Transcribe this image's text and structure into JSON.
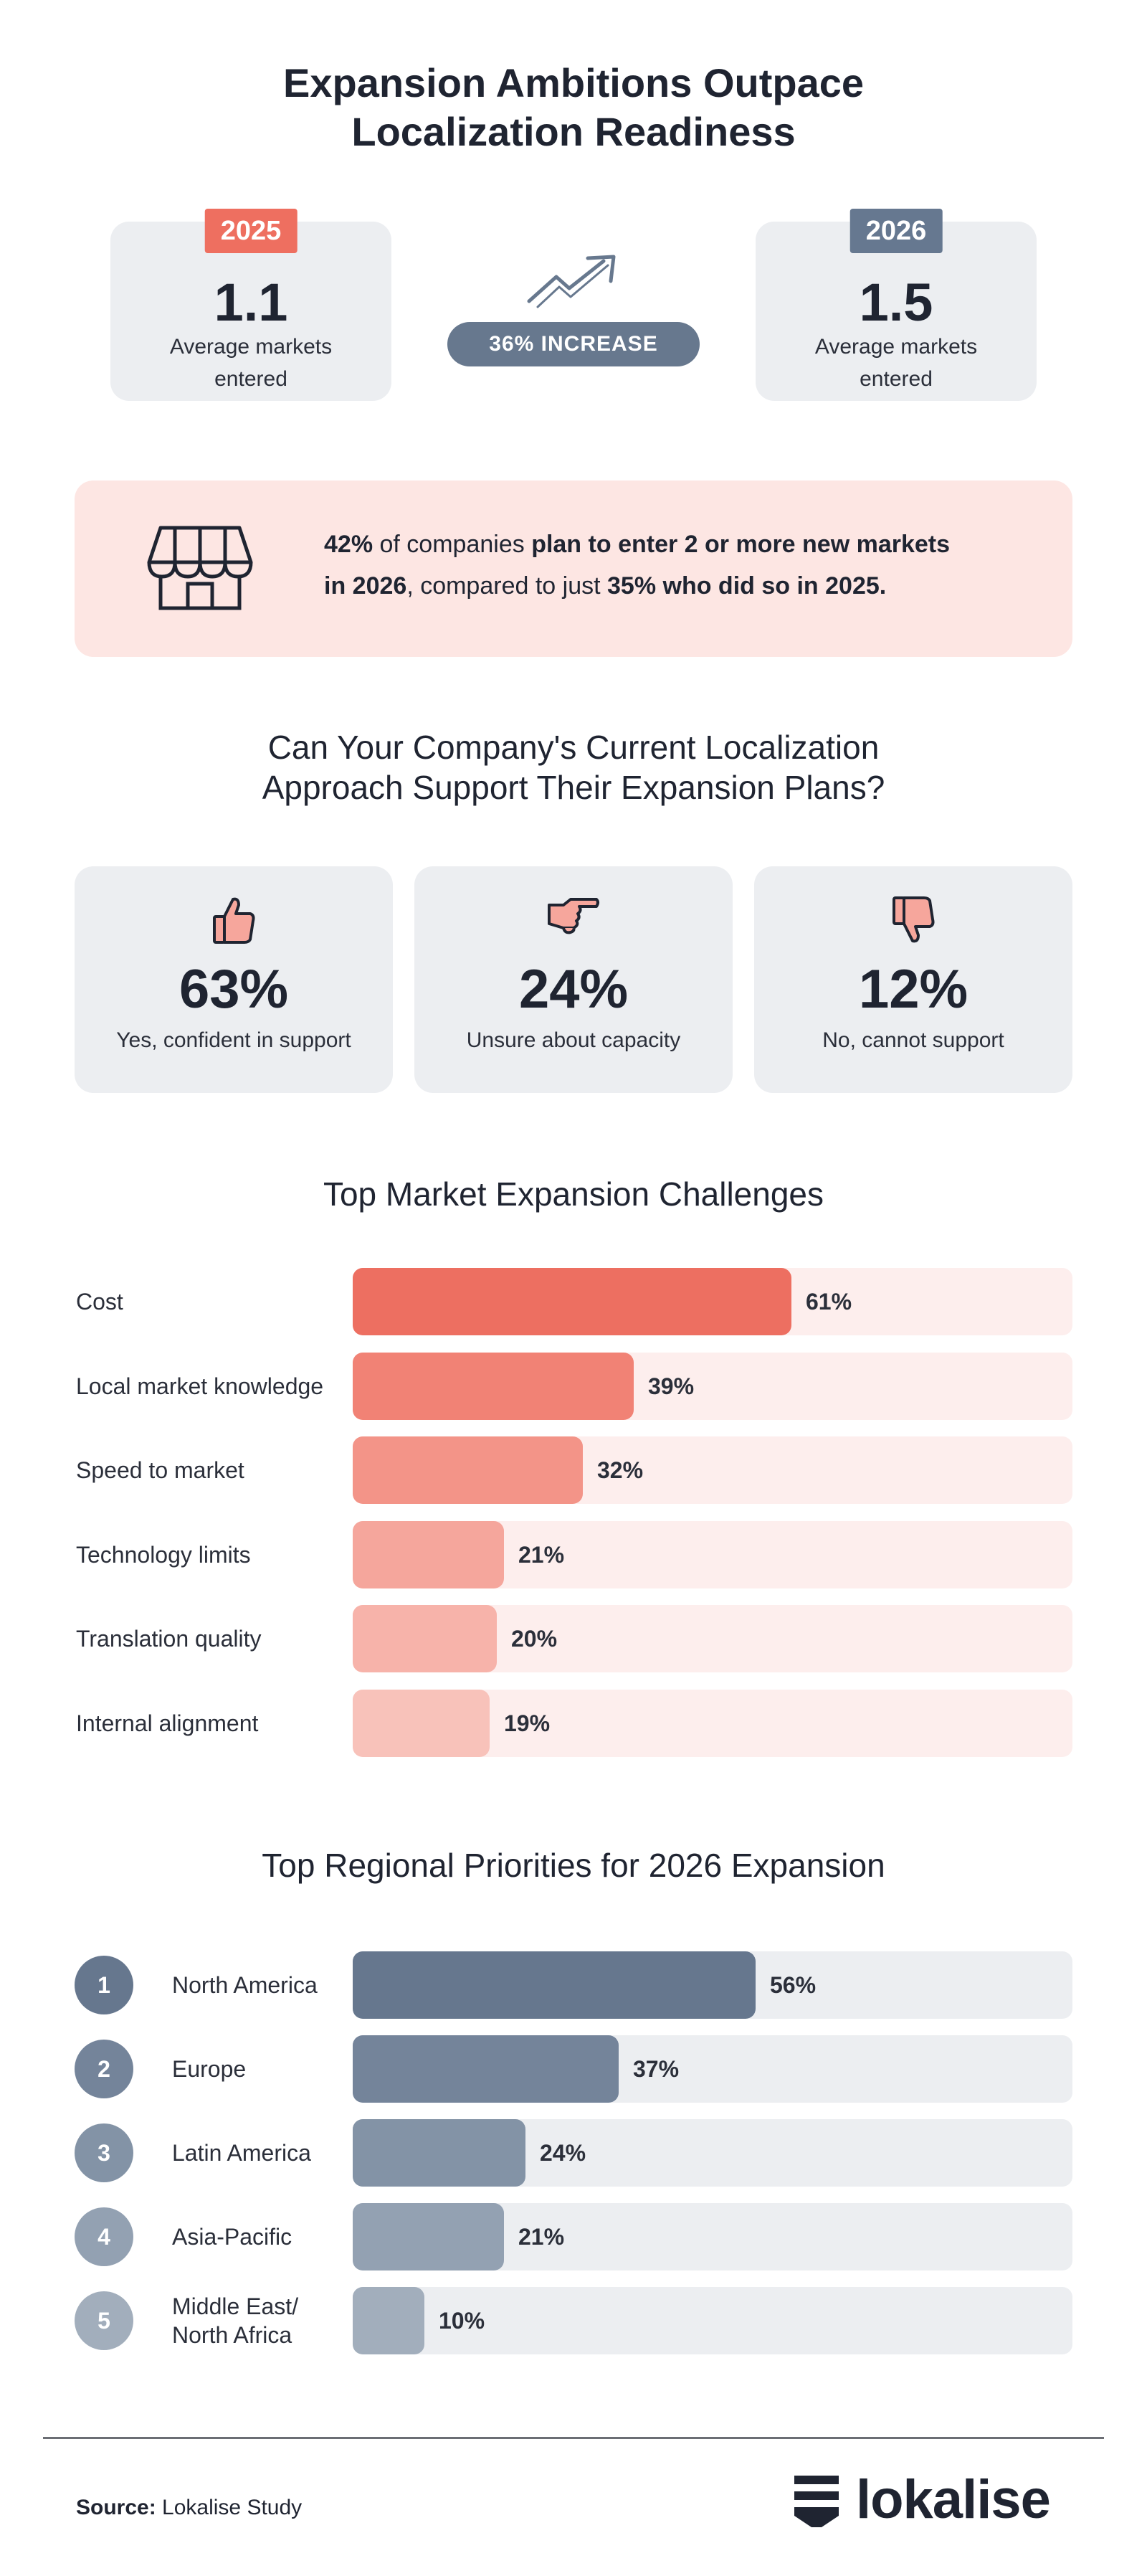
{
  "main_title_line1": "Expansion Ambitions Outpace",
  "main_title_line2": "Localization Readiness",
  "stats": {
    "y2025": {
      "year": "2025",
      "value": "1.1",
      "label_line1": "Average markets",
      "label_line2": "entered",
      "badge_color": "#ee6f60"
    },
    "y2026": {
      "year": "2026",
      "value": "1.5",
      "label_line1": "Average markets",
      "label_line2": "entered",
      "badge_color": "#667890"
    },
    "increase": "36% INCREASE"
  },
  "callout": {
    "line1_a": "42%",
    "line1_b": " of companies ",
    "line1_c": "plan to enter 2 or more new markets",
    "line2_a": "in 2026",
    "line2_b": ", compared to just ",
    "line2_c": "35% who did so in 2025."
  },
  "question_title_line1": "Can Your Company's Current Localization",
  "question_title_line2": "Approach Support Their Expansion Plans?",
  "sentiment": [
    {
      "value": "63%",
      "label": "Yes, confident in support",
      "icon": "thumbs-up-icon"
    },
    {
      "value": "24%",
      "label": "Unsure about capacity",
      "icon": "pointing-hand-icon"
    },
    {
      "value": "12%",
      "label": "No, cannot support",
      "icon": "thumbs-down-icon"
    }
  ],
  "chart_data": [
    {
      "type": "bar",
      "title": "Top Market Expansion Challenges",
      "categories": [
        "Cost",
        "Local market knowledge",
        "Speed to market",
        "Technology limits",
        "Translation quality",
        "Internal alignment"
      ],
      "values": [
        61,
        39,
        32,
        21,
        20,
        19
      ],
      "value_labels": [
        "61%",
        "39%",
        "32%",
        "21%",
        "20%",
        "19%"
      ],
      "colors": [
        "#ed6f61",
        "#f18275",
        "#f39488",
        "#f5a69c",
        "#f7b3aa",
        "#f8c2ba"
      ],
      "track_color": "#fdeeed",
      "xlim": [
        0,
        100
      ]
    },
    {
      "type": "bar",
      "title": "Top Regional Priorities for 2026 Expansion",
      "ranks": [
        "1",
        "2",
        "3",
        "4",
        "5"
      ],
      "categories": [
        "North America",
        "Europe",
        "Latin America",
        "Asia-Pacific",
        "Middle East/ North Africa"
      ],
      "category_lines": [
        [
          "North America"
        ],
        [
          "Europe"
        ],
        [
          "Latin America"
        ],
        [
          "Asia-Pacific"
        ],
        [
          "Middle East/",
          "North Africa"
        ]
      ],
      "values": [
        56,
        37,
        24,
        21,
        10
      ],
      "value_labels": [
        "56%",
        "37%",
        "24%",
        "21%",
        "10%"
      ],
      "colors": [
        "#66778e",
        "#74849a",
        "#8393a6",
        "#93a1b2",
        "#a2aebc"
      ],
      "track_color": "#eceef1",
      "xlim": [
        0,
        100
      ]
    }
  ],
  "footer": {
    "source_label": "Source:",
    "source_value": " Lokalise Study",
    "brand": "lokalise"
  }
}
